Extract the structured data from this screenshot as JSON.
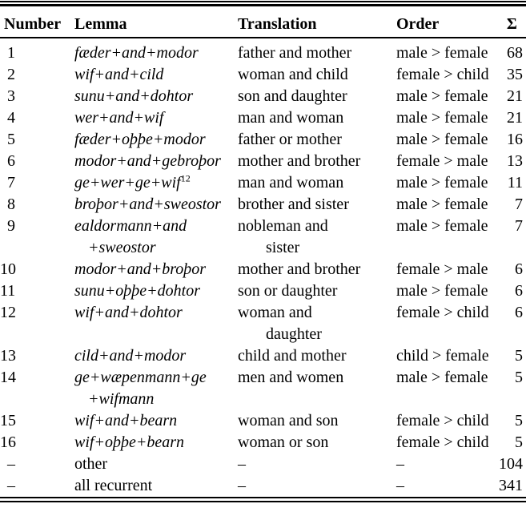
{
  "table": {
    "headers": {
      "number": "Number",
      "lemma": "Lemma",
      "translation": "Translation",
      "order": "Order",
      "sigma": "Σ"
    },
    "rows": [
      {
        "number": "1",
        "lemma": "fæder+and+modor",
        "translation": "father and mother",
        "order": "male > female",
        "sigma": "68",
        "italic": true
      },
      {
        "number": "2",
        "lemma": "wif+and+cild",
        "translation": "woman and child",
        "order": "female > child",
        "sigma": "35",
        "italic": true
      },
      {
        "number": "3",
        "lemma": "sunu+and+dohtor",
        "translation": "son and daughter",
        "order": "male > female",
        "sigma": "21",
        "italic": true
      },
      {
        "number": "4",
        "lemma": "wer+and+wif",
        "translation": "man and woman",
        "order": "male > female",
        "sigma": "21",
        "italic": true
      },
      {
        "number": "5",
        "lemma": "fæder+oþþe+modor",
        "translation": "father or mother",
        "order": "male > female",
        "sigma": "16",
        "italic": true
      },
      {
        "number": "6",
        "lemma": "modor+and+gebroþor",
        "translation": "mother and brother",
        "order": "female > male",
        "sigma": "13",
        "italic": true
      },
      {
        "number": "7",
        "lemma": "ge+wer+ge+wif",
        "lemma_sup": "12",
        "translation": "man and woman",
        "order": "male > female",
        "sigma": "11",
        "italic": true
      },
      {
        "number": "8",
        "lemma": "broþor+and+sweostor",
        "translation": "brother and sister",
        "order": "male > female",
        "sigma": "7",
        "italic": true
      },
      {
        "number": "9",
        "lemma": "ealdormann+and",
        "lemma2": "+sweostor",
        "translation": "nobleman and",
        "translation2": "sister",
        "order": "male > female",
        "sigma": "7",
        "italic": true
      },
      {
        "number": "10",
        "lemma": "modor+and+broþor",
        "translation": "mother and brother",
        "order": "female > male",
        "sigma": "6",
        "italic": true
      },
      {
        "number": "11",
        "lemma": "sunu+oþþe+dohtor",
        "translation": "son or daughter",
        "order": "male > female",
        "sigma": "6",
        "italic": true
      },
      {
        "number": "12",
        "lemma": "wif+and+dohtor",
        "translation": "woman and",
        "translation2": "daughter",
        "order": "female > child",
        "sigma": "6",
        "italic": true
      },
      {
        "number": "13",
        "lemma": "cild+and+modor",
        "translation": "child and mother",
        "order": "child > female",
        "sigma": "5",
        "italic": true
      },
      {
        "number": "14",
        "lemma": "ge+wæpenmann+ge",
        "lemma2": "+wifmann",
        "translation": "men and women",
        "order": "male > female",
        "sigma": "5",
        "italic": true
      },
      {
        "number": "15",
        "lemma": "wif+and+bearn",
        "translation": "woman and son",
        "order": "female > child",
        "sigma": "5",
        "italic": true
      },
      {
        "number": "16",
        "lemma": "wif+oþþe+bearn",
        "translation": "woman or son",
        "order": "female > child",
        "sigma": "5",
        "italic": true
      },
      {
        "number": "–",
        "lemma": "other",
        "translation": "–",
        "order": "–",
        "sigma": "104",
        "italic": false
      },
      {
        "number": "–",
        "lemma": "all recurrent",
        "translation": "–",
        "order": "–",
        "sigma": "341",
        "italic": false
      }
    ]
  }
}
